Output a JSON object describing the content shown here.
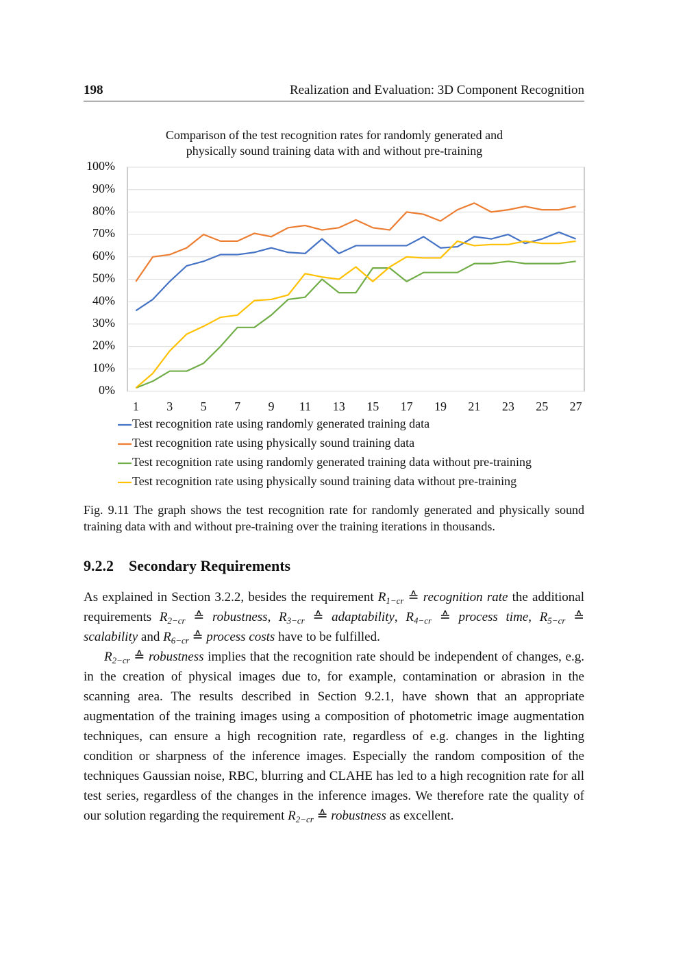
{
  "header": {
    "page_number": "198",
    "running_title": "Realization and Evaluation: 3D Component Recognition"
  },
  "chart_data": {
    "type": "line",
    "title": "Comparison of the test recognition rates for randomly generated and physically sound training data with and without pre-training",
    "categories": [
      1,
      null,
      3,
      null,
      5,
      null,
      7,
      null,
      9,
      null,
      11,
      null,
      13,
      null,
      15,
      null,
      17,
      null,
      19,
      null,
      21,
      null,
      23,
      null,
      25,
      null,
      27
    ],
    "ylim": [
      0,
      100
    ],
    "yticks": [
      {
        "value": 0,
        "label": "0%"
      },
      {
        "value": 10,
        "label": "10%"
      },
      {
        "value": 20,
        "label": "20%"
      },
      {
        "value": 30,
        "label": "30%"
      },
      {
        "value": 40,
        "label": "40%"
      },
      {
        "value": 50,
        "label": "50%"
      },
      {
        "value": 60,
        "label": "60%"
      },
      {
        "value": 70,
        "label": "70%"
      },
      {
        "value": 80,
        "label": "80%"
      },
      {
        "value": 90,
        "label": "90%"
      },
      {
        "value": 100,
        "label": "100%"
      }
    ],
    "grid": true,
    "series": [
      {
        "name": "Test recognition rate using randomly generated training data",
        "color": "#4472c4",
        "values": [
          36,
          41,
          49,
          56,
          58,
          61,
          61,
          62,
          64,
          62,
          61.5,
          68,
          61.5,
          65,
          65,
          65,
          65,
          69,
          64,
          64.5,
          69,
          68,
          70,
          66,
          68,
          71,
          68
        ]
      },
      {
        "name": "Test recognition rate using physically sound training data",
        "color": "#ed7d31",
        "values": [
          49,
          60,
          61,
          64,
          70,
          67,
          67,
          70.5,
          69,
          73,
          74,
          72,
          73,
          76.5,
          73,
          72,
          80,
          79,
          76,
          81,
          84,
          80,
          81,
          82.5,
          81,
          81,
          82.5
        ]
      },
      {
        "name": "Test recognition rate using randomly generated training data without pre-training",
        "color": "#70ad47",
        "values": [
          1.5,
          4.5,
          9,
          9,
          12.5,
          20,
          28.5,
          28.5,
          34,
          41,
          42,
          50,
          44,
          44,
          55,
          55,
          49,
          53,
          53,
          53,
          57,
          57,
          58,
          57,
          57,
          57,
          58
        ]
      },
      {
        "name": "Test recognition rate using physically sound training data without pre-training",
        "color": "#ffc000",
        "values": [
          1.5,
          8,
          18,
          25.5,
          29,
          33,
          34,
          40.5,
          41,
          43,
          52.5,
          51,
          50,
          55.5,
          49,
          55.5,
          60,
          59.5,
          59.5,
          67,
          65,
          65.5,
          65.5,
          67,
          66,
          66,
          67
        ]
      }
    ]
  },
  "caption": {
    "label": "Fig. 9.11",
    "text": "The graph shows the test recognition rate for randomly generated and physically sound training data with and without pre-training over the training iterations in thousands."
  },
  "section": {
    "number": "9.2.2",
    "title": "Secondary Requirements"
  },
  "paragraphs": [
    [
      "As explained in Section 3.2.2, besides the requirement ",
      "R",
      "1−cr",
      " ≙ ",
      "recognition rate",
      " the additional requirements ",
      "R",
      "2−cr",
      " ≙ ",
      "robustness",
      ", ",
      "R",
      "3−cr",
      " ≙ ",
      "adaptability",
      ", ",
      "R",
      "4−cr",
      " ≙ ",
      "process time",
      ", ",
      "R",
      "5−cr",
      " ≙ ",
      "scalability",
      " and ",
      "R",
      "6−cr",
      " ≙ ",
      "process costs",
      " have to be fulfilled."
    ],
    [
      "R",
      "2−cr",
      " ≙ ",
      "robustness",
      " implies that the recognition rate should be independent of changes, e.g. in the creation of physical images due to, for example, contamination or abrasion in the scanning area. The results described in Section 9.2.1, have shown that an appropriate augmentation of the training images using a composition of photometric image augmentation techniques, can ensure a high recognition rate, regardless of e.g. changes in the lighting condition or sharpness of the inference images. Especially the random composition of the techniques Gaussian noise, RBC, blurring and CLAHE has led to a high recognition rate for all test series, regardless of the changes in the inference images. We therefore rate the quality of our solution regarding the requirement ",
      "R",
      "2−cr",
      " ≙ ",
      "robustness",
      " as excellent."
    ]
  ]
}
